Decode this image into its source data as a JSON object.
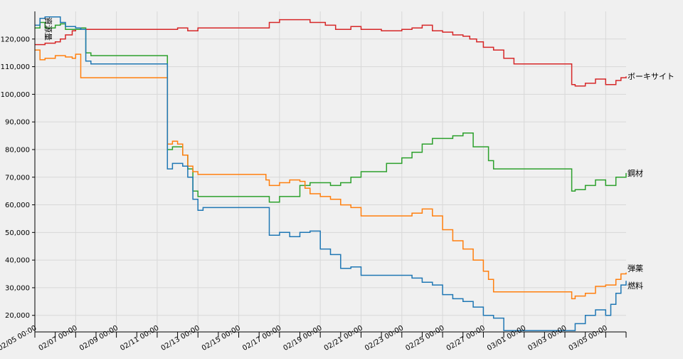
{
  "chart_data": {
    "type": "line",
    "ylabel": "資源量",
    "ylim": [
      14000,
      130000
    ],
    "xlim": [
      "2020-02-05 00:00",
      "2020-03-05 00:00"
    ],
    "yticks": [
      20000,
      30000,
      40000,
      50000,
      60000,
      70000,
      80000,
      90000,
      100000,
      110000,
      120000
    ],
    "ytick_labels": [
      "20,000",
      "30,000",
      "40,000",
      "50,000",
      "60,000",
      "70,000",
      "80,000",
      "90,000",
      "100,000",
      "110,000",
      "120,000"
    ],
    "xtick_labels": [
      "02/05 00:00",
      "02/07 00:00",
      "02/09 00:00",
      "02/11 00:00",
      "02/13 00:00",
      "02/15 00:00",
      "02/17 00:00",
      "02/19 00:00",
      "02/21 00:00",
      "02/23 00:00",
      "02/25 00:00",
      "02/27 00:00",
      "03/01 00:00",
      "03/03 00:00",
      "03/05 00:00"
    ],
    "grid": true,
    "legend": "end-of-line labels",
    "series": [
      {
        "name": "ボーキサイト",
        "color": "#d62728",
        "points": [
          [
            "2020-02-05 00:00",
            118000
          ],
          [
            "2020-02-05 12:00",
            118500
          ],
          [
            "2020-02-06 00:00",
            119000
          ],
          [
            "2020-02-06 06:00",
            120000
          ],
          [
            "2020-02-06 12:00",
            121500
          ],
          [
            "2020-02-06 20:00",
            123000
          ],
          [
            "2020-02-07 00:00",
            123500
          ],
          [
            "2020-02-08 00:00",
            123500
          ],
          [
            "2020-02-10 00:00",
            123500
          ],
          [
            "2020-02-11 12:00",
            123500
          ],
          [
            "2020-02-12 00:00",
            124000
          ],
          [
            "2020-02-12 12:00",
            123000
          ],
          [
            "2020-02-13 00:00",
            124000
          ],
          [
            "2020-02-15 00:00",
            124000
          ],
          [
            "2020-02-16 00:00",
            124000
          ],
          [
            "2020-02-16 12:00",
            126000
          ],
          [
            "2020-02-17 00:00",
            127000
          ],
          [
            "2020-02-18 00:00",
            127000
          ],
          [
            "2020-02-18 12:00",
            126000
          ],
          [
            "2020-02-19 06:00",
            125000
          ],
          [
            "2020-02-19 18:00",
            123500
          ],
          [
            "2020-02-20 12:00",
            124500
          ],
          [
            "2020-02-21 00:00",
            123500
          ],
          [
            "2020-02-22 00:00",
            123000
          ],
          [
            "2020-02-23 00:00",
            123500
          ],
          [
            "2020-02-23 12:00",
            124000
          ],
          [
            "2020-02-24 00:00",
            125000
          ],
          [
            "2020-02-24 12:00",
            123000
          ],
          [
            "2020-02-25 00:00",
            122500
          ],
          [
            "2020-02-25 12:00",
            121500
          ],
          [
            "2020-02-26 00:00",
            121000
          ],
          [
            "2020-02-26 08:00",
            120000
          ],
          [
            "2020-02-26 16:00",
            119000
          ],
          [
            "2020-02-27 00:00",
            117000
          ],
          [
            "2020-02-27 12:00",
            116000
          ],
          [
            "2020-02-28 00:00",
            113000
          ],
          [
            "2020-02-28 12:00",
            111000
          ],
          [
            "2020-03-01 00:00",
            111000
          ],
          [
            "2020-03-02 06:00",
            111000
          ],
          [
            "2020-03-02 08:00",
            103500
          ],
          [
            "2020-03-02 12:00",
            103000
          ],
          [
            "2020-03-03 00:00",
            104000
          ],
          [
            "2020-03-03 12:00",
            105500
          ],
          [
            "2020-03-04 00:00",
            103500
          ],
          [
            "2020-03-04 12:00",
            105000
          ],
          [
            "2020-03-04 18:00",
            106000
          ],
          [
            "2020-03-05 00:00",
            106500
          ]
        ]
      },
      {
        "name": "鋼材",
        "color": "#2ca02c",
        "points": [
          [
            "2020-02-05 00:00",
            124000
          ],
          [
            "2020-02-05 06:00",
            126000
          ],
          [
            "2020-02-05 12:00",
            124000
          ],
          [
            "2020-02-06 00:00",
            125000
          ],
          [
            "2020-02-06 06:00",
            125500
          ],
          [
            "2020-02-06 12:00",
            123500
          ],
          [
            "2020-02-07 00:00",
            123500
          ],
          [
            "2020-02-07 06:00",
            124000
          ],
          [
            "2020-02-07 12:00",
            115000
          ],
          [
            "2020-02-07 18:00",
            114000
          ],
          [
            "2020-02-09 00:00",
            114000
          ],
          [
            "2020-02-11 00:00",
            114000
          ],
          [
            "2020-02-11 11:00",
            114000
          ],
          [
            "2020-02-11 12:00",
            80000
          ],
          [
            "2020-02-11 18:00",
            81000
          ],
          [
            "2020-02-12 06:00",
            78000
          ],
          [
            "2020-02-12 12:00",
            73000
          ],
          [
            "2020-02-12 18:00",
            65000
          ],
          [
            "2020-02-13 00:00",
            63000
          ],
          [
            "2020-02-14 00:00",
            63000
          ],
          [
            "2020-02-15 00:00",
            63000
          ],
          [
            "2020-02-16 00:00",
            63000
          ],
          [
            "2020-02-16 08:00",
            63000
          ],
          [
            "2020-02-16 12:00",
            61000
          ],
          [
            "2020-02-17 00:00",
            63000
          ],
          [
            "2020-02-18 00:00",
            67000
          ],
          [
            "2020-02-18 12:00",
            68000
          ],
          [
            "2020-02-19 00:00",
            68000
          ],
          [
            "2020-02-19 12:00",
            67000
          ],
          [
            "2020-02-20 00:00",
            68000
          ],
          [
            "2020-02-20 12:00",
            70000
          ],
          [
            "2020-02-21 00:00",
            72000
          ],
          [
            "2020-02-22 00:00",
            72000
          ],
          [
            "2020-02-22 06:00",
            75000
          ],
          [
            "2020-02-23 00:00",
            77000
          ],
          [
            "2020-02-23 12:00",
            79000
          ],
          [
            "2020-02-24 00:00",
            82000
          ],
          [
            "2020-02-24 12:00",
            84000
          ],
          [
            "2020-02-25 00:00",
            84000
          ],
          [
            "2020-02-25 12:00",
            85000
          ],
          [
            "2020-02-26 00:00",
            86000
          ],
          [
            "2020-02-26 12:00",
            81000
          ],
          [
            "2020-02-27 00:00",
            81000
          ],
          [
            "2020-02-27 06:00",
            76000
          ],
          [
            "2020-02-27 12:00",
            73000
          ],
          [
            "2020-03-01 00:00",
            73000
          ],
          [
            "2020-03-02 00:00",
            73000
          ],
          [
            "2020-03-02 06:00",
            73000
          ],
          [
            "2020-03-02 08:00",
            65000
          ],
          [
            "2020-03-02 12:00",
            65500
          ],
          [
            "2020-03-03 00:00",
            67000
          ],
          [
            "2020-03-03 12:00",
            69000
          ],
          [
            "2020-03-04 00:00",
            67000
          ],
          [
            "2020-03-04 12:00",
            70000
          ],
          [
            "2020-03-05 00:00",
            71500
          ]
        ]
      },
      {
        "name": "弾薬",
        "color": "#ff7f0e",
        "points": [
          [
            "2020-02-05 00:00",
            116000
          ],
          [
            "2020-02-05 06:00",
            112500
          ],
          [
            "2020-02-05 12:00",
            113000
          ],
          [
            "2020-02-06 00:00",
            114000
          ],
          [
            "2020-02-06 12:00",
            113500
          ],
          [
            "2020-02-06 20:00",
            113000
          ],
          [
            "2020-02-07 00:00",
            114500
          ],
          [
            "2020-02-07 06:00",
            106000
          ],
          [
            "2020-02-09 00:00",
            106000
          ],
          [
            "2020-02-11 00:00",
            106000
          ],
          [
            "2020-02-11 11:00",
            106000
          ],
          [
            "2020-02-11 12:00",
            82000
          ],
          [
            "2020-02-11 18:00",
            83000
          ],
          [
            "2020-02-12 00:00",
            82000
          ],
          [
            "2020-02-12 06:00",
            78000
          ],
          [
            "2020-02-12 12:00",
            74000
          ],
          [
            "2020-02-12 18:00",
            72000
          ],
          [
            "2020-02-13 00:00",
            71000
          ],
          [
            "2020-02-15 00:00",
            71000
          ],
          [
            "2020-02-16 00:00",
            71000
          ],
          [
            "2020-02-16 08:00",
            69000
          ],
          [
            "2020-02-16 12:00",
            67000
          ],
          [
            "2020-02-17 00:00",
            68000
          ],
          [
            "2020-02-17 12:00",
            69000
          ],
          [
            "2020-02-18 00:00",
            68500
          ],
          [
            "2020-02-18 06:00",
            66000
          ],
          [
            "2020-02-18 12:00",
            64000
          ],
          [
            "2020-02-19 00:00",
            63000
          ],
          [
            "2020-02-19 12:00",
            62000
          ],
          [
            "2020-02-20 00:00",
            60000
          ],
          [
            "2020-02-20 12:00",
            59000
          ],
          [
            "2020-02-21 00:00",
            56000
          ],
          [
            "2020-02-22 00:00",
            56000
          ],
          [
            "2020-02-23 00:00",
            56000
          ],
          [
            "2020-02-23 12:00",
            57000
          ],
          [
            "2020-02-24 00:00",
            58500
          ],
          [
            "2020-02-24 12:00",
            56000
          ],
          [
            "2020-02-25 00:00",
            51000
          ],
          [
            "2020-02-25 12:00",
            47000
          ],
          [
            "2020-02-26 00:00",
            44000
          ],
          [
            "2020-02-26 12:00",
            40000
          ],
          [
            "2020-02-27 00:00",
            36000
          ],
          [
            "2020-02-27 06:00",
            33000
          ],
          [
            "2020-02-27 12:00",
            28500
          ],
          [
            "2020-03-01 00:00",
            28500
          ],
          [
            "2020-03-02 00:00",
            28500
          ],
          [
            "2020-03-02 06:00",
            28500
          ],
          [
            "2020-03-02 08:00",
            26000
          ],
          [
            "2020-03-02 12:00",
            27000
          ],
          [
            "2020-03-03 00:00",
            28000
          ],
          [
            "2020-03-03 12:00",
            30500
          ],
          [
            "2020-03-04 00:00",
            31000
          ],
          [
            "2020-03-04 12:00",
            33000
          ],
          [
            "2020-03-04 18:00",
            35000
          ],
          [
            "2020-03-05 00:00",
            35500
          ]
        ]
      },
      {
        "name": "燃料",
        "color": "#1f77b4",
        "points": [
          [
            "2020-02-05 00:00",
            125000
          ],
          [
            "2020-02-05 06:00",
            127500
          ],
          [
            "2020-02-05 12:00",
            128000
          ],
          [
            "2020-02-06 00:00",
            128000
          ],
          [
            "2020-02-06 06:00",
            126000
          ],
          [
            "2020-02-06 12:00",
            124500
          ],
          [
            "2020-02-07 00:00",
            124000
          ],
          [
            "2020-02-07 06:00",
            123500
          ],
          [
            "2020-02-07 12:00",
            112000
          ],
          [
            "2020-02-07 18:00",
            111000
          ],
          [
            "2020-02-09 00:00",
            111000
          ],
          [
            "2020-02-11 00:00",
            111000
          ],
          [
            "2020-02-11 11:00",
            111000
          ],
          [
            "2020-02-11 12:00",
            73000
          ],
          [
            "2020-02-11 18:00",
            75000
          ],
          [
            "2020-02-12 06:00",
            74000
          ],
          [
            "2020-02-12 12:00",
            70000
          ],
          [
            "2020-02-12 18:00",
            62000
          ],
          [
            "2020-02-13 00:00",
            58000
          ],
          [
            "2020-02-13 06:00",
            59000
          ],
          [
            "2020-02-14 00:00",
            59000
          ],
          [
            "2020-02-15 00:00",
            59000
          ],
          [
            "2020-02-16 00:00",
            59000
          ],
          [
            "2020-02-16 08:00",
            59000
          ],
          [
            "2020-02-16 12:00",
            49000
          ],
          [
            "2020-02-17 00:00",
            50000
          ],
          [
            "2020-02-17 12:00",
            48500
          ],
          [
            "2020-02-18 00:00",
            50000
          ],
          [
            "2020-02-18 12:00",
            50500
          ],
          [
            "2020-02-19 00:00",
            44000
          ],
          [
            "2020-02-19 12:00",
            42000
          ],
          [
            "2020-02-20 00:00",
            37000
          ],
          [
            "2020-02-20 12:00",
            37500
          ],
          [
            "2020-02-21 00:00",
            34500
          ],
          [
            "2020-02-22 00:00",
            34500
          ],
          [
            "2020-02-23 00:00",
            34500
          ],
          [
            "2020-02-23 12:00",
            33500
          ],
          [
            "2020-02-24 00:00",
            32000
          ],
          [
            "2020-02-24 12:00",
            31000
          ],
          [
            "2020-02-25 00:00",
            27500
          ],
          [
            "2020-02-25 12:00",
            26000
          ],
          [
            "2020-02-26 00:00",
            25000
          ],
          [
            "2020-02-26 12:00",
            23000
          ],
          [
            "2020-02-27 00:00",
            20000
          ],
          [
            "2020-02-27 12:00",
            19000
          ],
          [
            "2020-02-28 00:00",
            14500
          ],
          [
            "2020-03-01 00:00",
            14500
          ],
          [
            "2020-03-02 00:00",
            14500
          ],
          [
            "2020-03-02 06:00",
            14500
          ],
          [
            "2020-03-02 12:00",
            17000
          ],
          [
            "2020-03-03 00:00",
            20000
          ],
          [
            "2020-03-03 12:00",
            22000
          ],
          [
            "2020-03-04 00:00",
            20000
          ],
          [
            "2020-03-04 06:00",
            24000
          ],
          [
            "2020-03-04 12:00",
            28000
          ],
          [
            "2020-03-04 18:00",
            31000
          ],
          [
            "2020-03-05 00:00",
            32500
          ]
        ]
      }
    ]
  }
}
